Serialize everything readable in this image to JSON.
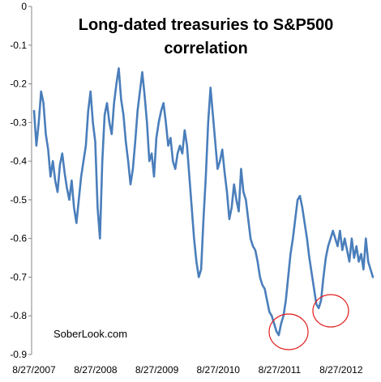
{
  "chart_data": {
    "type": "line",
    "title_lines": [
      "Long-dated treasuries  to S&P500",
      "correlation"
    ],
    "xlabel": "",
    "ylabel": "",
    "source_label": "SoberLook.com",
    "x_ticks": [
      "8/27/2007",
      "8/27/2008",
      "8/27/2009",
      "8/27/2010",
      "8/27/2011",
      "8/27/2012"
    ],
    "ylim": [
      -0.9,
      0
    ],
    "y_ticks": [
      0,
      -0.1,
      -0.2,
      -0.3,
      -0.4,
      -0.5,
      -0.6,
      -0.7,
      -0.8,
      -0.9
    ],
    "y_tick_labels": [
      "0",
      "-0.1",
      "-0.2",
      "-0.3",
      "-0.4",
      "-0.5",
      "-0.6",
      "-0.7",
      "-0.8",
      "-0.9"
    ],
    "grid": false,
    "line_color": "#4a7ebb",
    "annotation_color": "#e02020",
    "series": [
      {
        "x": [
          "2007-08-27",
          "2007-09-10",
          "2007-09-24",
          "2007-10-08",
          "2007-10-22",
          "2007-11-05",
          "2007-11-19",
          "2007-12-03",
          "2007-12-17",
          "2007-12-31",
          "2008-01-14",
          "2008-01-28",
          "2008-02-11",
          "2008-02-25",
          "2008-03-10",
          "2008-03-24",
          "2008-04-07",
          "2008-04-21",
          "2008-05-05",
          "2008-05-19",
          "2008-06-02",
          "2008-06-16",
          "2008-06-30",
          "2008-07-14",
          "2008-07-28",
          "2008-08-11",
          "2008-08-25",
          "2008-09-08",
          "2008-09-22",
          "2008-10-06",
          "2008-10-20",
          "2008-11-03",
          "2008-11-17",
          "2008-12-01",
          "2008-12-15",
          "2008-12-29",
          "2009-01-12",
          "2009-01-26",
          "2009-02-09",
          "2009-02-23",
          "2009-03-09",
          "2009-03-23",
          "2009-04-06",
          "2009-04-20",
          "2009-05-04",
          "2009-05-18",
          "2009-06-01",
          "2009-06-15",
          "2009-06-29",
          "2009-07-13",
          "2009-07-27",
          "2009-08-10",
          "2009-08-24",
          "2009-09-07",
          "2009-09-21",
          "2009-10-05",
          "2009-10-19",
          "2009-11-02",
          "2009-11-16",
          "2009-11-30",
          "2009-12-14",
          "2009-12-28",
          "2010-01-11",
          "2010-01-25",
          "2010-02-08",
          "2010-02-22",
          "2010-03-08",
          "2010-03-22",
          "2010-04-05",
          "2010-04-19",
          "2010-05-03",
          "2010-05-17",
          "2010-05-31",
          "2010-06-14",
          "2010-06-28",
          "2010-07-12",
          "2010-07-26",
          "2010-08-09",
          "2010-08-23",
          "2010-09-06",
          "2010-09-20",
          "2010-10-04",
          "2010-10-18",
          "2010-11-01",
          "2010-11-15",
          "2010-11-29",
          "2010-12-13",
          "2010-12-27",
          "2011-01-10",
          "2011-01-24",
          "2011-02-07",
          "2011-02-21",
          "2011-03-07",
          "2011-03-21",
          "2011-04-04",
          "2011-04-18",
          "2011-05-02",
          "2011-05-16",
          "2011-05-30",
          "2011-06-13",
          "2011-06-27",
          "2011-07-11",
          "2011-07-25",
          "2011-08-08",
          "2011-08-22",
          "2011-09-05",
          "2011-09-19",
          "2011-10-03",
          "2011-10-17",
          "2011-10-31",
          "2011-11-14",
          "2011-11-28",
          "2011-12-12",
          "2011-12-26",
          "2012-01-09",
          "2012-01-23",
          "2012-02-06",
          "2012-02-20",
          "2012-03-05",
          "2012-03-19",
          "2012-04-02",
          "2012-04-16",
          "2012-04-30",
          "2012-05-14",
          "2012-05-28",
          "2012-06-11",
          "2012-06-25",
          "2012-07-09",
          "2012-07-23",
          "2012-08-06",
          "2012-08-20",
          "2012-09-03",
          "2012-09-17",
          "2012-10-01",
          "2012-10-15",
          "2012-10-29",
          "2012-11-12",
          "2012-11-26",
          "2012-12-10",
          "2012-12-24",
          "2013-01-07",
          "2013-01-21",
          "2013-02-04",
          "2013-02-18",
          "2013-03-04"
        ],
        "values": [
          -0.27,
          -0.36,
          -0.3,
          -0.22,
          -0.25,
          -0.33,
          -0.37,
          -0.44,
          -0.4,
          -0.45,
          -0.48,
          -0.41,
          -0.38,
          -0.43,
          -0.47,
          -0.5,
          -0.45,
          -0.52,
          -0.56,
          -0.5,
          -0.44,
          -0.4,
          -0.36,
          -0.27,
          -0.22,
          -0.3,
          -0.35,
          -0.52,
          -0.6,
          -0.4,
          -0.28,
          -0.25,
          -0.3,
          -0.33,
          -0.25,
          -0.2,
          -0.16,
          -0.24,
          -0.28,
          -0.35,
          -0.4,
          -0.46,
          -0.42,
          -0.35,
          -0.27,
          -0.22,
          -0.17,
          -0.23,
          -0.3,
          -0.4,
          -0.38,
          -0.44,
          -0.34,
          -0.3,
          -0.27,
          -0.25,
          -0.3,
          -0.36,
          -0.34,
          -0.4,
          -0.42,
          -0.38,
          -0.36,
          -0.38,
          -0.32,
          -0.36,
          -0.44,
          -0.52,
          -0.6,
          -0.66,
          -0.7,
          -0.68,
          -0.55,
          -0.44,
          -0.3,
          -0.21,
          -0.28,
          -0.35,
          -0.42,
          -0.4,
          -0.37,
          -0.43,
          -0.48,
          -0.55,
          -0.52,
          -0.46,
          -0.5,
          -0.53,
          -0.42,
          -0.48,
          -0.5,
          -0.55,
          -0.6,
          -0.62,
          -0.63,
          -0.66,
          -0.7,
          -0.72,
          -0.73,
          -0.76,
          -0.79,
          -0.8,
          -0.82,
          -0.84,
          -0.85,
          -0.82,
          -0.8,
          -0.76,
          -0.7,
          -0.64,
          -0.6,
          -0.55,
          -0.5,
          -0.49,
          -0.52,
          -0.56,
          -0.6,
          -0.65,
          -0.69,
          -0.73,
          -0.77,
          -0.78,
          -0.76,
          -0.7,
          -0.65,
          -0.62,
          -0.6,
          -0.58,
          -0.6,
          -0.62,
          -0.58,
          -0.63,
          -0.6,
          -0.63,
          -0.66,
          -0.6,
          -0.65,
          -0.62,
          -0.66,
          -0.64,
          -0.68,
          -0.6,
          -0.66,
          -0.68,
          -0.7
        ]
      }
    ]
  }
}
